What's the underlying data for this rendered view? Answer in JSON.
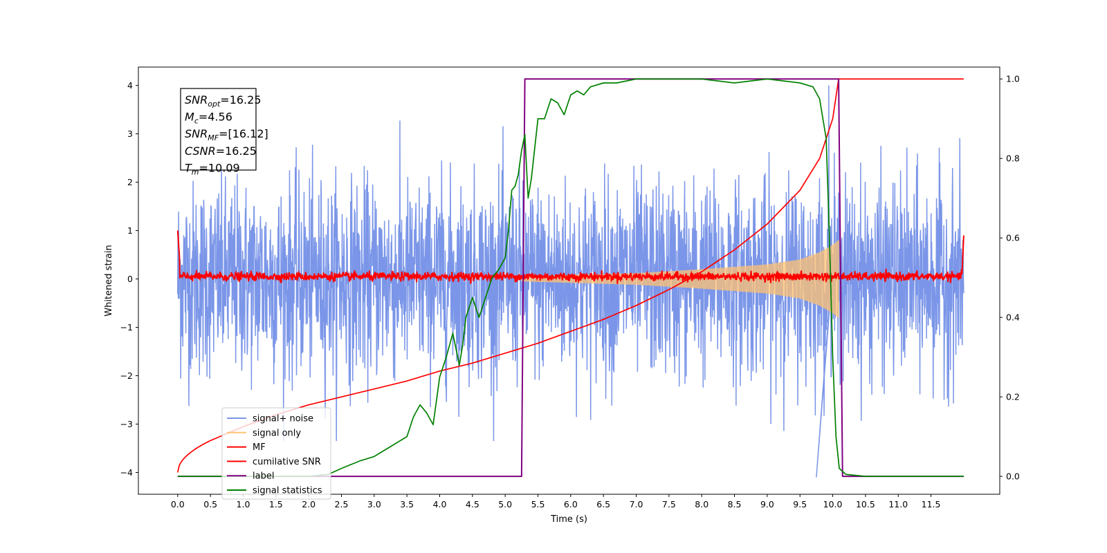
{
  "chart_data": {
    "type": "line",
    "xlabel": "Time (s)",
    "ylabel": "Whitened strain",
    "xlim": [
      -0.6,
      12.55
    ],
    "ylim": [
      -4.45,
      4.38
    ],
    "y2lim": [
      -0.045,
      1.03
    ],
    "grid": false,
    "legend_position": "lower-left",
    "x_ticks": [
      "0.0",
      "0.5",
      "1.0",
      "1.5",
      "2.0",
      "2.5",
      "3.0",
      "3.5",
      "4.0",
      "4.5",
      "5.0",
      "5.5",
      "6.0",
      "6.5",
      "7.0",
      "7.5",
      "8.0",
      "8.5",
      "9.0",
      "9.5",
      "10.0",
      "10.5",
      "11.0",
      "11.5"
    ],
    "y_ticks": [
      "4",
      "3",
      "2",
      "1",
      "0",
      "−1",
      "−2",
      "−3",
      "−4"
    ],
    "y2_ticks": [
      "1.0",
      "0.8",
      "0.6",
      "0.4",
      "0.2",
      "0.0"
    ],
    "annotation": [
      {
        "sym": "SNR",
        "sub": "opt",
        "val": "=16.25"
      },
      {
        "sym": "M",
        "sub": "c",
        "val": "=4.56"
      },
      {
        "sym": "SNR",
        "sub": "MF",
        "val": "=[16.12]"
      },
      {
        "sym": "CSNR",
        "sub": "",
        "val": "=16.25"
      },
      {
        "sym": "T",
        "sub": "m",
        "val": "=10.09"
      }
    ],
    "legend": [
      {
        "label": "signal+ noise",
        "color": "#7b96e8"
      },
      {
        "label": "signal only",
        "color": "#ffc273"
      },
      {
        "label": "MF",
        "color": "#ff0000"
      },
      {
        "label": "cumilative SNR",
        "color": "#ff0000"
      },
      {
        "label": "label",
        "color": "#800080"
      },
      {
        "label": "signal statistics",
        "color": "#008000"
      }
    ],
    "series": [
      {
        "name": "signal+ noise",
        "color": "#7b96e8",
        "axis": "left",
        "t_range": [
          0.0,
          12.0
        ],
        "amplitude_1sigma": 1.0,
        "max_spike": [
          3.9,
          9.94
        ]
      },
      {
        "name": "signal only",
        "color": "#ffc273",
        "axis": "left",
        "t_range": [
          5.25,
          10.09
        ],
        "envelope": {
          "t": [
            5.25,
            6.0,
            7.0,
            8.0,
            9.0,
            9.5,
            9.8,
            10.0,
            10.09
          ],
          "amp": [
            0.05,
            0.08,
            0.12,
            0.2,
            0.3,
            0.4,
            0.55,
            0.7,
            0.8
          ]
        }
      },
      {
        "name": "MF",
        "color": "#ff0000",
        "axis": "left",
        "t_range": [
          0.0,
          12.0
        ],
        "baseline": 0.05,
        "noise_sigma": 0.045,
        "end_spikes": [
          1.0,
          0.9
        ]
      },
      {
        "name": "cumilative SNR",
        "color": "#ff0000",
        "axis": "right",
        "x": [
          0.0,
          0.5,
          1.0,
          1.5,
          2.0,
          2.5,
          3.0,
          3.5,
          4.0,
          4.5,
          5.0,
          5.5,
          6.0,
          6.5,
          7.0,
          7.5,
          8.0,
          8.5,
          9.0,
          9.5,
          9.8,
          10.0,
          10.09,
          12.0
        ],
        "y": [
          0.01,
          0.09,
          0.125,
          0.155,
          0.18,
          0.2,
          0.22,
          0.24,
          0.265,
          0.285,
          0.31,
          0.335,
          0.365,
          0.395,
          0.43,
          0.47,
          0.515,
          0.57,
          0.635,
          0.72,
          0.8,
          0.9,
          1.0,
          1.0
        ]
      },
      {
        "name": "label",
        "color": "#800080",
        "axis": "right",
        "x": [
          0.0,
          5.25,
          5.3,
          10.09,
          10.15,
          12.0
        ],
        "y": [
          0.0,
          0.0,
          1.0,
          1.0,
          0.0,
          0.0
        ]
      },
      {
        "name": "signal statistics",
        "color": "#008000",
        "axis": "right",
        "x": [
          0.0,
          0.5,
          1.0,
          1.5,
          2.0,
          2.3,
          2.5,
          2.8,
          3.0,
          3.3,
          3.5,
          3.6,
          3.7,
          3.8,
          3.9,
          4.0,
          4.1,
          4.2,
          4.3,
          4.35,
          4.4,
          4.5,
          4.6,
          4.7,
          4.8,
          4.9,
          5.0,
          5.05,
          5.1,
          5.15,
          5.2,
          5.25,
          5.3,
          5.35,
          5.4,
          5.5,
          5.6,
          5.7,
          5.8,
          5.9,
          6.0,
          6.1,
          6.2,
          6.3,
          6.5,
          6.7,
          7.0,
          7.5,
          8.0,
          8.5,
          9.0,
          9.5,
          9.7,
          9.8,
          9.9,
          9.95,
          10.0,
          10.05,
          10.1,
          10.2,
          10.5,
          11.0,
          11.5,
          12.0
        ],
        "y": [
          0.0,
          0.0,
          0.0,
          0.0,
          0.0,
          0.005,
          0.02,
          0.04,
          0.05,
          0.08,
          0.1,
          0.15,
          0.18,
          0.16,
          0.13,
          0.25,
          0.3,
          0.36,
          0.28,
          0.33,
          0.4,
          0.45,
          0.4,
          0.45,
          0.5,
          0.52,
          0.55,
          0.62,
          0.72,
          0.73,
          0.76,
          0.82,
          0.86,
          0.7,
          0.75,
          0.9,
          0.9,
          0.95,
          0.94,
          0.91,
          0.96,
          0.97,
          0.96,
          0.98,
          0.99,
          0.99,
          1.0,
          1.0,
          1.0,
          0.99,
          1.0,
          0.99,
          0.98,
          0.95,
          0.85,
          0.6,
          0.3,
          0.1,
          0.02,
          0.005,
          0.0,
          0.0,
          0.0,
          0.0
        ]
      }
    ]
  }
}
